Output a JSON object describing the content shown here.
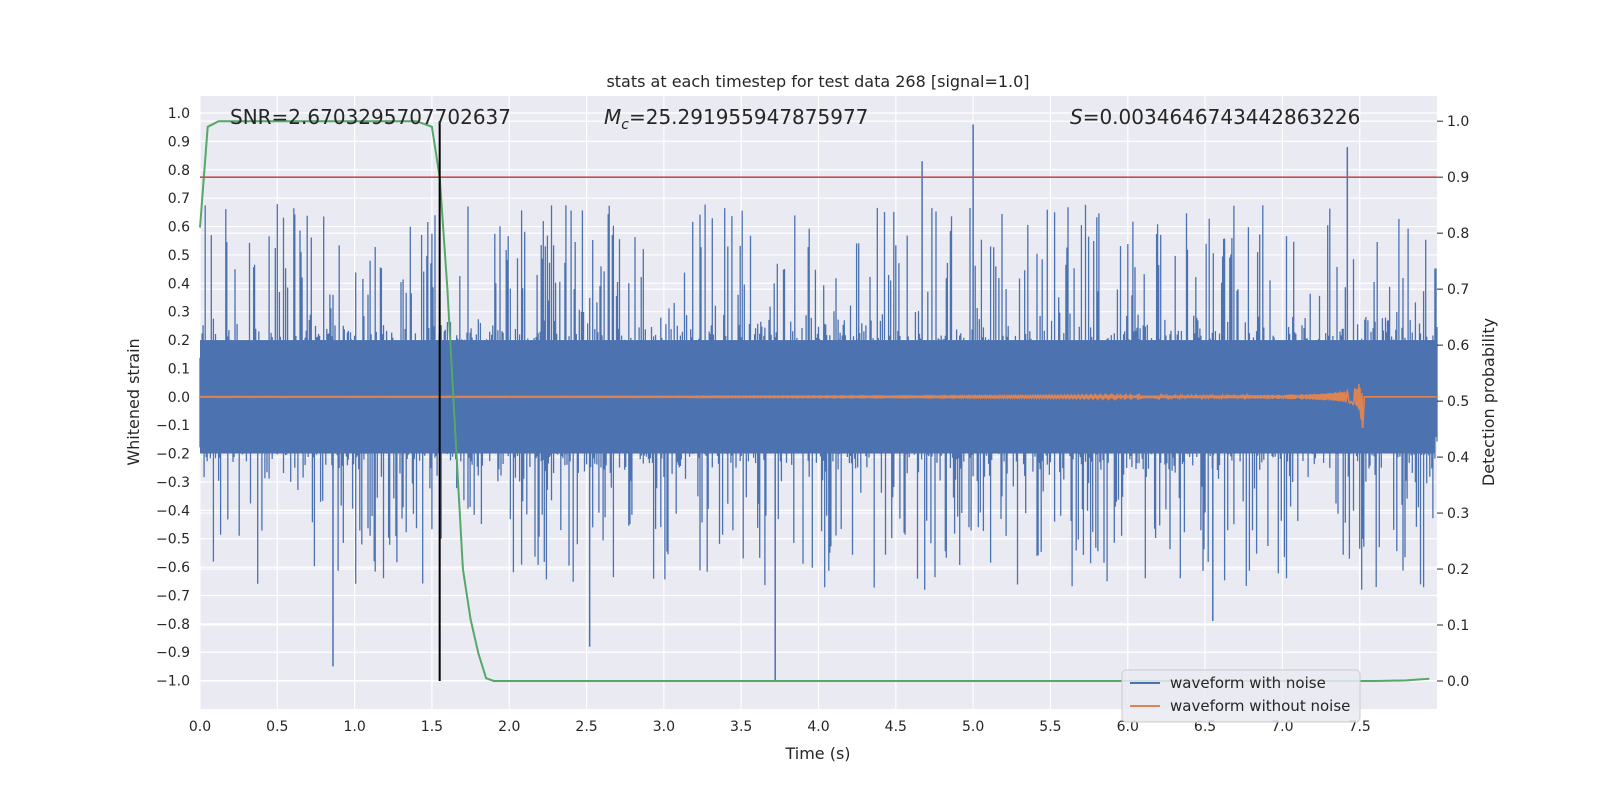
{
  "chart_data": {
    "type": "line",
    "title": "stats at each timestep for test data 268 [signal=1.0]",
    "xlabel": "Time (s)",
    "ylabel": "Whitened strain",
    "y2label": "Detection probability",
    "xlim": [
      0.0,
      8.0
    ],
    "ylim": [
      -1.1,
      1.06
    ],
    "y2lim": [
      -0.05,
      1.045
    ],
    "x_ticks": [
      "0.0",
      "0.5",
      "1.0",
      "1.5",
      "2.0",
      "2.5",
      "3.0",
      "3.5",
      "4.0",
      "4.5",
      "5.0",
      "5.5",
      "6.0",
      "6.5",
      "7.0",
      "7.5"
    ],
    "y_ticks": [
      "1.0",
      "0.9",
      "0.8",
      "0.7",
      "0.6",
      "0.5",
      "0.4",
      "0.3",
      "0.2",
      "0.1",
      "0.0",
      "−0.1",
      "−0.2",
      "−0.3",
      "−0.4",
      "−0.5",
      "−0.6",
      "−0.7",
      "−0.8",
      "−0.9",
      "−1.0"
    ],
    "y2_ticks": [
      "1.0",
      "0.9",
      "0.8",
      "0.7",
      "0.6",
      "0.5",
      "0.4",
      "0.3",
      "0.2",
      "0.1",
      "0.0"
    ],
    "annotations": {
      "snr": "SNR=2.6703295707702637",
      "mc_symbol": "M",
      "mc_sub": "c",
      "mc_value": "=25.291955947875977",
      "s_symbol": "S",
      "s_value": "=0.0034646743442863226"
    },
    "threshold": {
      "detection_probability": 0.9,
      "color": "#c44e52"
    },
    "trigger_time": 1.55,
    "legend": {
      "location": "lower-right",
      "entries": [
        "waveform with noise",
        "waveform without noise"
      ]
    },
    "series": [
      {
        "name": "waveform with noise",
        "color": "#4c72b0",
        "axis": "left",
        "description": "whitened strain noise, roughly symmetric about 0 with dense core |y|<=0.2 and spikes up to ~0.96 and down to ~-1.0",
        "notable_peaks": [
          {
            "x": 0.86,
            "y": -0.95
          },
          {
            "x": 2.52,
            "y": -0.88
          },
          {
            "x": 3.72,
            "y": -1.0
          },
          {
            "x": 4.67,
            "y": 0.83
          },
          {
            "x": 5.0,
            "y": 0.96
          },
          {
            "x": 6.55,
            "y": -0.79
          },
          {
            "x": 7.42,
            "y": 0.88
          }
        ],
        "seed": 268
      },
      {
        "name": "waveform without noise",
        "color": "#dd8452",
        "axis": "left",
        "description": "chirp signal, near zero amplitude until merger",
        "merger_time": 7.52,
        "peak_amplitude": 0.14
      },
      {
        "name": "detection probability",
        "color": "#55a868",
        "axis": "right",
        "x": [
          0.0,
          0.05,
          0.12,
          0.2,
          0.4,
          0.8,
          1.2,
          1.4,
          1.5,
          1.55,
          1.6,
          1.65,
          1.7,
          1.75,
          1.8,
          1.85,
          1.9,
          2.0,
          3.0,
          4.0,
          5.0,
          6.0,
          7.0,
          7.6,
          7.8,
          7.95
        ],
        "y": [
          0.81,
          0.99,
          1.0,
          1.0,
          1.0,
          1.0,
          1.0,
          1.0,
          0.99,
          0.9,
          0.7,
          0.45,
          0.2,
          0.11,
          0.05,
          0.005,
          0.0,
          0.0,
          0.0,
          0.0,
          0.0,
          0.0,
          0.0,
          0.0,
          0.001,
          0.004
        ]
      }
    ]
  }
}
